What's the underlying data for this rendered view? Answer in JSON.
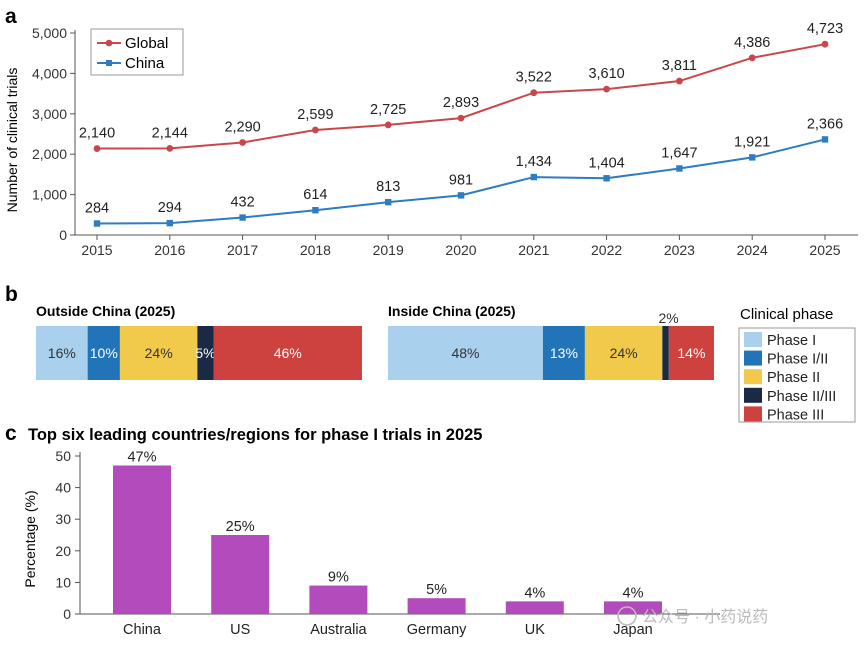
{
  "colors": {
    "global": "#c9474a",
    "china": "#2e7cc4",
    "phase1": "#a9d1ee",
    "phase1_2": "#2274b8",
    "phase2": "#f1c94b",
    "phase2_3": "#1b2a44",
    "phase3": "#cd413e",
    "bar": "#b44bbd",
    "axis": "#555555",
    "watermark": "#bbbbbb"
  },
  "panels": {
    "a": "a",
    "b": "b",
    "c": "c"
  },
  "watermark": "公众号 · 小药说药",
  "chart_data": [
    {
      "type": "line",
      "ylabel": "Number of clinical trials",
      "ylim": [
        0,
        5000
      ],
      "yticks": [
        "0",
        "1,000",
        "2,000",
        "3,000",
        "4,000",
        "5,000"
      ],
      "ytick_values": [
        0,
        1000,
        2000,
        3000,
        4000,
        5000
      ],
      "x": [
        "2015",
        "2016",
        "2017",
        "2018",
        "2019",
        "2020",
        "2021",
        "2022",
        "2023",
        "2024",
        "2025"
      ],
      "legend_position": "top-left",
      "series": [
        {
          "name": "Global",
          "values": [
            2140,
            2144,
            2290,
            2599,
            2725,
            2893,
            3522,
            3610,
            3811,
            4386,
            4723
          ],
          "labels": [
            "2,140",
            "2,144",
            "2,290",
            "2,599",
            "2,725",
            "2,893",
            "3,522",
            "3,610",
            "3,811",
            "4,386",
            "4,723"
          ]
        },
        {
          "name": "China",
          "values": [
            284,
            294,
            432,
            614,
            813,
            981,
            1434,
            1404,
            1647,
            1921,
            2366
          ],
          "labels": [
            "284",
            "294",
            "432",
            "614",
            "813",
            "981",
            "1,434",
            "1,404",
            "1,647",
            "1,921",
            "2,366"
          ]
        }
      ]
    },
    {
      "type": "bar",
      "orientation": "stacked-horizontal-percent",
      "legend_title": "Clinical phase",
      "legend_position": "right",
      "categories": [
        "Phase I",
        "Phase I/II",
        "Phase II",
        "Phase II/III",
        "Phase III"
      ],
      "groups": [
        {
          "name": "Outside China (2025)",
          "values": [
            16,
            10,
            24,
            5,
            46
          ],
          "labels": [
            "16%",
            "10%",
            "24%",
            "5%",
            "46%"
          ]
        },
        {
          "name": "Inside China (2025)",
          "values": [
            48,
            13,
            24,
            2,
            14
          ],
          "labels": [
            "48%",
            "13%",
            "24%",
            "2%",
            "14%"
          ]
        }
      ]
    },
    {
      "type": "bar",
      "title": "Top six leading countries/regions for phase I trials in 2025",
      "ylabel": "Percentage (%)",
      "ylim": [
        0,
        50
      ],
      "yticks": [
        "0",
        "10",
        "20",
        "30",
        "40",
        "50"
      ],
      "ytick_values": [
        0,
        10,
        20,
        30,
        40,
        50
      ],
      "categories": [
        "China",
        "US",
        "Australia",
        "Germany",
        "UK",
        "Japan"
      ],
      "values": [
        47,
        25,
        9,
        5,
        4,
        4
      ],
      "labels": [
        "47%",
        "25%",
        "9%",
        "5%",
        "4%",
        "4%"
      ]
    }
  ]
}
